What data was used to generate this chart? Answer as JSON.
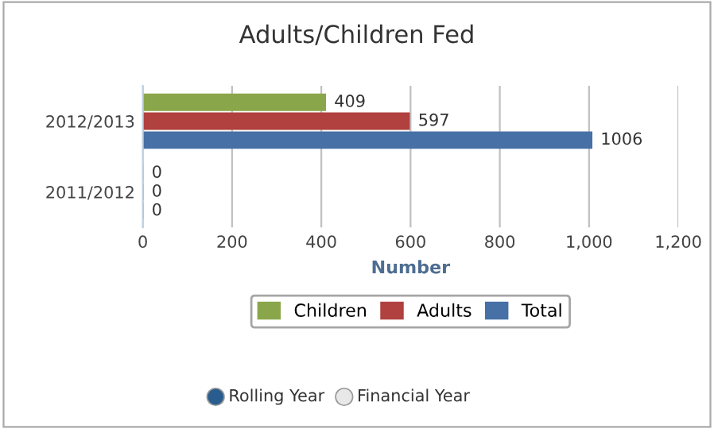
{
  "chart_data": {
    "type": "bar",
    "orientation": "horizontal",
    "title": "Adults/Children Fed",
    "xlabel": "Number",
    "categories": [
      "2012/2013",
      "2011/2012"
    ],
    "series": [
      {
        "name": "Children",
        "color": "#8aa64a",
        "values": [
          409,
          0
        ]
      },
      {
        "name": "Adults",
        "color": "#b0413e",
        "values": [
          597,
          0
        ]
      },
      {
        "name": "Total",
        "color": "#4670a6",
        "values": [
          1006,
          0
        ]
      }
    ],
    "xlim": [
      0,
      1200
    ],
    "xticks": [
      0,
      200,
      400,
      {
        "value": 600,
        "label": "600"
      },
      800,
      {
        "value": 1000,
        "label": "1,000"
      },
      {
        "value": 1200,
        "label": "1,200"
      }
    ],
    "grid": "x",
    "legend": "bottom",
    "data_labels": true,
    "annotations": [
      "Rolling Year",
      "Financial Year"
    ]
  }
}
